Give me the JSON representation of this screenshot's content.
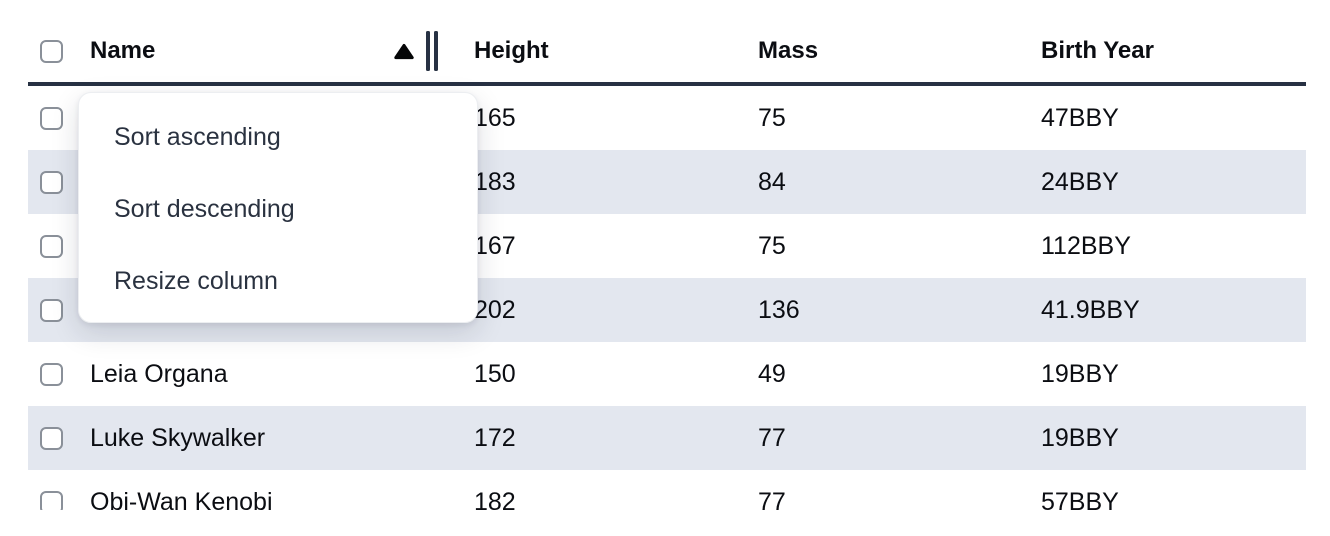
{
  "colors": {
    "accent_navy": "#273143",
    "row_stripe": "#e3e7ef",
    "cell_text": "#0b0d12",
    "header_text": "#0b0d12",
    "menu_text": "#2a3240",
    "checkbox_border": "#8a9099"
  },
  "icons": {
    "sort_ascending": "▲",
    "column_resize": "‖",
    "checkbox_unchecked": "☐"
  },
  "table": {
    "columns": [
      {
        "label": "Name",
        "sorted": "ascending",
        "has_resize_handle": true
      },
      {
        "label": "Height"
      },
      {
        "label": "Mass"
      },
      {
        "label": "Birth Year"
      }
    ],
    "rows": [
      {
        "name": "",
        "height": "165",
        "mass": "75",
        "birth_year": "47BBY"
      },
      {
        "name": "",
        "height": "183",
        "mass": "84",
        "birth_year": "24BBY"
      },
      {
        "name": "",
        "height": "167",
        "mass": "75",
        "birth_year": "112BBY"
      },
      {
        "name": "",
        "height": "202",
        "mass": "136",
        "birth_year": "41.9BBY"
      },
      {
        "name": "Leia Organa",
        "height": "150",
        "mass": "49",
        "birth_year": "19BBY"
      },
      {
        "name": "Luke Skywalker",
        "height": "172",
        "mass": "77",
        "birth_year": "19BBY"
      },
      {
        "name": "Obi-Wan Kenobi",
        "height": "182",
        "mass": "77",
        "birth_year": "57BBY"
      }
    ]
  },
  "context_menu": {
    "items": [
      {
        "label": "Sort ascending"
      },
      {
        "label": "Sort descending"
      },
      {
        "label": "Resize column"
      }
    ]
  }
}
